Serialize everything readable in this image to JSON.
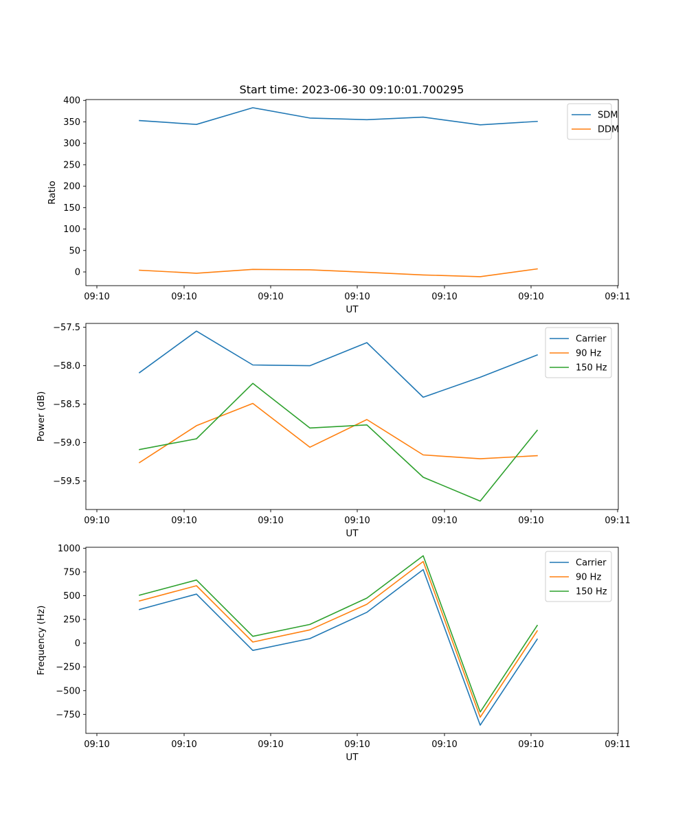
{
  "figure": {
    "title": "Start time: 2023-06-30 09:10:01.700295"
  },
  "colors": {
    "blue": "#1f77b4",
    "orange": "#ff7f0e",
    "green": "#2ca02c"
  },
  "chart_data": [
    {
      "type": "line",
      "title": "Start time: 2023-06-30 09:10:01.700295",
      "xlabel": "UT",
      "ylabel": "Ratio",
      "x_tick_labels": [
        "09:10",
        "09:10",
        "09:10",
        "09:10",
        "09:10",
        "09:10",
        "09:11"
      ],
      "y_ticks": [
        0,
        50,
        100,
        150,
        200,
        250,
        300,
        350,
        400
      ],
      "ylim": [
        -32,
        402
      ],
      "legend_position": "upper right",
      "series": [
        {
          "name": "SDM",
          "color": "#1f77b4",
          "values": [
            353,
            344,
            383,
            359,
            355,
            361,
            343,
            351
          ]
        },
        {
          "name": "DDM",
          "color": "#ff7f0e",
          "values": [
            4,
            -3,
            6,
            5,
            -1,
            -7,
            -11,
            7
          ]
        }
      ]
    },
    {
      "type": "line",
      "title": "",
      "xlabel": "UT",
      "ylabel": "Power (dB)",
      "x_tick_labels": [
        "09:10",
        "09:10",
        "09:10",
        "09:10",
        "09:10",
        "09:10",
        "09:11"
      ],
      "y_ticks": [
        -57.5,
        -58.0,
        -58.5,
        -59.0,
        -59.5
      ],
      "y_tick_labels": [
        "−57.5",
        "−58.0",
        "−58.5",
        "−59.0",
        "−59.5"
      ],
      "ylim": [
        -59.87,
        -57.45
      ],
      "legend_position": "upper right",
      "series": [
        {
          "name": "Carrier",
          "color": "#1f77b4",
          "values": [
            -58.09,
            -57.55,
            -57.99,
            -58.0,
            -57.7,
            -58.41,
            -58.15,
            -57.86
          ]
        },
        {
          "name": "90 Hz",
          "color": "#ff7f0e",
          "values": [
            -59.26,
            -58.78,
            -58.49,
            -59.06,
            -58.7,
            -59.16,
            -59.21,
            -59.17
          ]
        },
        {
          "name": "150 Hz",
          "color": "#2ca02c",
          "values": [
            -59.09,
            -58.95,
            -58.23,
            -58.81,
            -58.77,
            -59.45,
            -59.76,
            -58.84
          ]
        }
      ]
    },
    {
      "type": "line",
      "title": "",
      "xlabel": "UT",
      "ylabel": "Frequency (Hz)",
      "x_tick_labels": [
        "09:10",
        "09:10",
        "09:10",
        "09:10",
        "09:10",
        "09:10",
        "09:11"
      ],
      "y_ticks": [
        1000,
        750,
        500,
        250,
        0,
        -250,
        -500,
        -750
      ],
      "y_tick_labels": [
        "1000",
        "750",
        "500",
        "250",
        "0",
        "−250",
        "−500",
        "−750"
      ],
      "ylim": [
        -950,
        1010
      ],
      "legend_position": "upper right",
      "series": [
        {
          "name": "Carrier",
          "color": "#1f77b4",
          "values": [
            355,
            517,
            -76,
            48,
            325,
            775,
            -864,
            42
          ]
        },
        {
          "name": "90 Hz",
          "color": "#ff7f0e",
          "values": [
            445,
            605,
            12,
            140,
            410,
            860,
            -780,
            130
          ]
        },
        {
          "name": "150 Hz",
          "color": "#2ca02c",
          "values": [
            505,
            665,
            72,
            197,
            475,
            920,
            -725,
            187
          ]
        }
      ]
    }
  ]
}
